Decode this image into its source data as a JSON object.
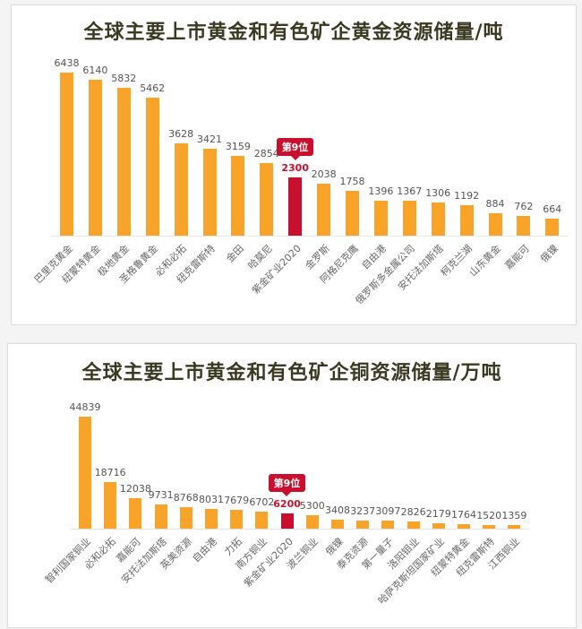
{
  "colors": {
    "bar": "#f8a42a",
    "highlight": "#c8102e",
    "title": "#3a3a22"
  },
  "chart_data": [
    {
      "type": "bar",
      "title": "全球主要上市黄金和有色矿企黄金资源储量/吨",
      "xlabel": "",
      "ylabel": "",
      "unit": "吨",
      "grid": false,
      "legend": null,
      "categories": [
        "巴里克黄金",
        "纽蒙特黄金",
        "极地黄金",
        "圣格鲁黄金",
        "必和必拓",
        "纽克雷斯特",
        "金田",
        "哈莫尼",
        "紫金矿业2020",
        "金罗斯",
        "阿格尼克鹰",
        "自由港",
        "俄罗斯多金属公司",
        "安托法加斯塔",
        "柯克兰湖",
        "山东黄金",
        "嘉能可",
        "俄镍"
      ],
      "values": [
        6438,
        6140,
        5832,
        5462,
        3628,
        3421,
        3159,
        2854,
        2300,
        2038,
        1758,
        1396,
        1367,
        1306,
        1192,
        884,
        762,
        664
      ],
      "highlight_index": 8,
      "annotation": "第9位",
      "ylim": [
        0,
        6438
      ]
    },
    {
      "type": "bar",
      "title": "全球主要上市黄金和有色矿企铜资源储量/万吨",
      "xlabel": "",
      "ylabel": "",
      "unit": "万吨",
      "grid": false,
      "legend": null,
      "categories": [
        "智利国家铜业",
        "必和必拓",
        "嘉能可",
        "安托法加斯塔",
        "英美资源",
        "自由港",
        "力拓",
        "南方铜业",
        "紫金矿业2020",
        "波兰铜业",
        "俄镍",
        "泰克资源",
        "第一量子",
        "洛阳钼业",
        "哈萨克斯坦国家矿业",
        "纽蒙特黄金",
        "纽克雷斯特",
        "江西铜业"
      ],
      "values": [
        44839,
        18716,
        12038,
        9731,
        8768,
        8031,
        7679,
        6702,
        6200,
        5300,
        3408,
        3237,
        3097,
        2826,
        2179,
        1764,
        1520,
        1359
      ],
      "highlight_index": 8,
      "annotation": "第9位",
      "ylim": [
        0,
        44839
      ]
    }
  ]
}
